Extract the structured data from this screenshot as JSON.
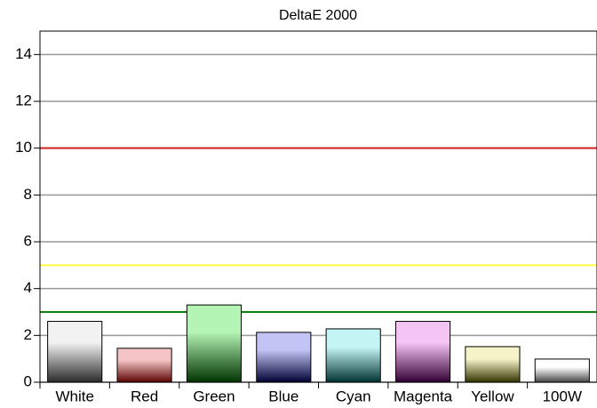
{
  "chart_data": {
    "type": "bar",
    "title": "DeltaE 2000",
    "categories": [
      "White",
      "Red",
      "Green",
      "Blue",
      "Cyan",
      "Magenta",
      "Yellow",
      "100W"
    ],
    "values": [
      2.6,
      1.45,
      3.3,
      2.13,
      2.28,
      2.6,
      1.52,
      0.99
    ],
    "colors": [
      [
        "#f2f2f2",
        "#2a2a2a"
      ],
      [
        "#f4c4c4",
        "#5a0000"
      ],
      [
        "#b4f4b4",
        "#003300"
      ],
      [
        "#c4c4f4",
        "#000033"
      ],
      [
        "#c4f4f4",
        "#003333"
      ],
      [
        "#f4c4f4",
        "#330033"
      ],
      [
        "#f4f4c8",
        "#333300"
      ],
      [
        "#ffffff",
        "#444444"
      ]
    ],
    "ylim": [
      0,
      15
    ],
    "yticks": [
      0,
      2,
      4,
      6,
      8,
      10,
      12,
      14
    ],
    "grid": true,
    "reference_lines": [
      {
        "value": 10,
        "color": "#d02020"
      },
      {
        "value": 5,
        "color": "#ffff40"
      },
      {
        "value": 3,
        "color": "#108010"
      }
    ]
  }
}
